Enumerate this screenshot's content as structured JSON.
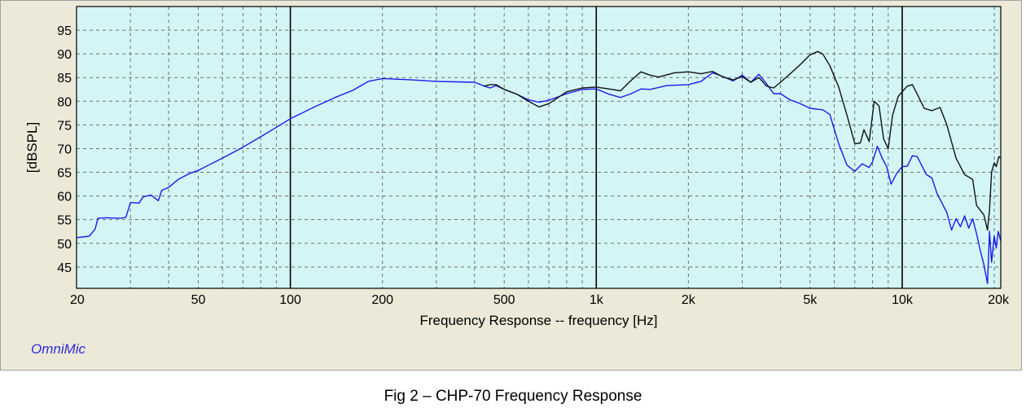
{
  "brand": "OmniMic",
  "caption": "Fig 2 – CHP-70 Frequency Response",
  "chart_data": {
    "type": "line",
    "xlabel": "Frequency Response -- frequency [Hz]",
    "ylabel": "[dBSPL]",
    "xscale": "log",
    "xlim": [
      20,
      21000
    ],
    "ylim": [
      40.5,
      100
    ],
    "x_ticks": [
      20,
      50,
      100,
      200,
      500,
      1000,
      2000,
      5000,
      10000,
      20000
    ],
    "x_tick_labels": [
      "20",
      "50",
      "100",
      "200",
      "500",
      "1k",
      "2k",
      "5k",
      "10k",
      "20k"
    ],
    "y_ticks": [
      45,
      50,
      55,
      60,
      65,
      70,
      75,
      80,
      85,
      90,
      95
    ],
    "y_tick_labels": [
      "45",
      "50",
      "55",
      "60",
      "65",
      "70",
      "75",
      "80",
      "85",
      "90",
      "95"
    ],
    "grid": true,
    "background_color": "#d4f5f5",
    "series": [
      {
        "color": "#1a1aee",
        "points": [
          [
            20,
            51.2
          ],
          [
            22,
            51.5
          ],
          [
            23,
            53
          ],
          [
            23.5,
            55.3
          ],
          [
            25,
            55.4
          ],
          [
            28,
            55.3
          ],
          [
            29,
            55.5
          ],
          [
            30,
            58.6
          ],
          [
            32,
            58.5
          ],
          [
            33,
            59.8
          ],
          [
            35,
            60.2
          ],
          [
            37,
            59
          ],
          [
            38,
            61.2
          ],
          [
            40,
            61.8
          ],
          [
            43,
            63.5
          ],
          [
            47,
            64.8
          ],
          [
            50,
            65.4
          ],
          [
            60,
            68
          ],
          [
            70,
            70.3
          ],
          [
            80,
            72.5
          ],
          [
            90,
            74.5
          ],
          [
            100,
            76.3
          ],
          [
            120,
            78.8
          ],
          [
            140,
            80.8
          ],
          [
            160,
            82.3
          ],
          [
            180,
            84.2
          ],
          [
            200,
            84.8
          ],
          [
            250,
            84.5
          ],
          [
            300,
            84.2
          ],
          [
            350,
            84.1
          ],
          [
            400,
            84
          ],
          [
            430,
            83.2
          ],
          [
            450,
            82.8
          ],
          [
            470,
            83.3
          ],
          [
            500,
            82.5
          ],
          [
            550,
            81.5
          ],
          [
            600,
            80.3
          ],
          [
            650,
            79.8
          ],
          [
            700,
            80.2
          ],
          [
            800,
            81.6
          ],
          [
            900,
            82.5
          ],
          [
            1000,
            82.6
          ],
          [
            1100,
            81.5
          ],
          [
            1200,
            80.8
          ],
          [
            1300,
            81.6
          ],
          [
            1400,
            82.6
          ],
          [
            1500,
            82.5
          ],
          [
            1700,
            83.3
          ],
          [
            2000,
            83.5
          ],
          [
            2200,
            84.2
          ],
          [
            2400,
            86
          ],
          [
            2600,
            85.2
          ],
          [
            2800,
            84.3
          ],
          [
            3000,
            85.5
          ],
          [
            3200,
            84
          ],
          [
            3400,
            85.7
          ],
          [
            3600,
            83.7
          ],
          [
            3800,
            81.6
          ],
          [
            4000,
            81.6
          ],
          [
            4300,
            80.3
          ],
          [
            4600,
            79.6
          ],
          [
            5000,
            78.5
          ],
          [
            5500,
            78.2
          ],
          [
            5800,
            77.2
          ],
          [
            6200,
            71
          ],
          [
            6600,
            66.5
          ],
          [
            7000,
            65.2
          ],
          [
            7400,
            66.8
          ],
          [
            7800,
            66
          ],
          [
            8000,
            67.2
          ],
          [
            8300,
            70.5
          ],
          [
            8600,
            68
          ],
          [
            8900,
            66.2
          ],
          [
            9200,
            62.5
          ],
          [
            9600,
            64.8
          ],
          [
            10000,
            66.2
          ],
          [
            10400,
            66.3
          ],
          [
            10800,
            68.5
          ],
          [
            11200,
            68.3
          ],
          [
            12000,
            64.5
          ],
          [
            12500,
            63.8
          ],
          [
            13000,
            60.5
          ],
          [
            14000,
            56.5
          ],
          [
            14500,
            52.8
          ],
          [
            15000,
            55.2
          ],
          [
            15500,
            53.5
          ],
          [
            16000,
            55.8
          ],
          [
            16500,
            53.2
          ],
          [
            17000,
            55.2
          ],
          [
            17500,
            52
          ],
          [
            18000,
            48.5
          ],
          [
            18500,
            45.5
          ],
          [
            19000,
            41.5
          ],
          [
            19300,
            52.5
          ],
          [
            19600,
            46
          ],
          [
            20000,
            51.5
          ],
          [
            20300,
            49
          ],
          [
            20600,
            52.5
          ],
          [
            21000,
            50.5
          ]
        ]
      },
      {
        "color": "#111111",
        "points": [
          [
            430,
            83.2
          ],
          [
            450,
            83.5
          ],
          [
            470,
            83.5
          ],
          [
            500,
            82.5
          ],
          [
            550,
            81.5
          ],
          [
            600,
            80
          ],
          [
            650,
            78.8
          ],
          [
            700,
            79.5
          ],
          [
            800,
            82
          ],
          [
            900,
            82.8
          ],
          [
            1000,
            83
          ],
          [
            1100,
            82.6
          ],
          [
            1200,
            82.2
          ],
          [
            1300,
            84.4
          ],
          [
            1400,
            86.2
          ],
          [
            1500,
            85.5
          ],
          [
            1600,
            85.1
          ],
          [
            1800,
            86
          ],
          [
            2000,
            86.2
          ],
          [
            2200,
            85.8
          ],
          [
            2400,
            86.3
          ],
          [
            2600,
            85.1
          ],
          [
            2800,
            84.5
          ],
          [
            3000,
            85.2
          ],
          [
            3200,
            84
          ],
          [
            3400,
            85
          ],
          [
            3600,
            83.2
          ],
          [
            3800,
            82.8
          ],
          [
            4000,
            84
          ],
          [
            4300,
            85.8
          ],
          [
            4600,
            87.5
          ],
          [
            5000,
            89.8
          ],
          [
            5300,
            90.5
          ],
          [
            5500,
            90
          ],
          [
            5800,
            87.5
          ],
          [
            6200,
            83
          ],
          [
            6600,
            77
          ],
          [
            7000,
            71
          ],
          [
            7300,
            71.2
          ],
          [
            7500,
            74
          ],
          [
            7800,
            71.5
          ],
          [
            8100,
            80
          ],
          [
            8400,
            79
          ],
          [
            8700,
            72
          ],
          [
            9000,
            70
          ],
          [
            9300,
            77
          ],
          [
            9700,
            81
          ],
          [
            10000,
            82
          ],
          [
            10400,
            83.2
          ],
          [
            10800,
            83.5
          ],
          [
            11200,
            81.5
          ],
          [
            11800,
            78.5
          ],
          [
            12500,
            78
          ],
          [
            13300,
            78.7
          ],
          [
            14000,
            75
          ],
          [
            15000,
            68
          ],
          [
            16000,
            64.5
          ],
          [
            17000,
            63.5
          ],
          [
            17500,
            58
          ],
          [
            18500,
            56
          ],
          [
            19000,
            52.8
          ],
          [
            19300,
            57
          ],
          [
            19600,
            65
          ],
          [
            20000,
            67
          ],
          [
            20300,
            66.2
          ],
          [
            20700,
            68.3
          ],
          [
            21000,
            68
          ]
        ]
      }
    ]
  }
}
